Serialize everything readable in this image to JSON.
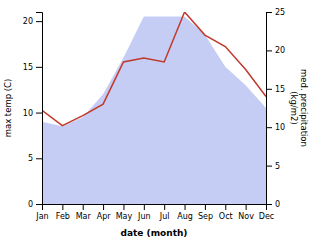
{
  "chart_data": {
    "type": "line",
    "categories": [
      "Jan",
      "Feb",
      "Mar",
      "Apr",
      "May",
      "Jun",
      "Jul",
      "Aug",
      "Sep",
      "Oct",
      "Nov",
      "Dec"
    ],
    "series": [
      {
        "type": "area",
        "color": "#c5cdf5",
        "values": [
          9.0,
          8.5,
          9.5,
          12.0,
          16.0,
          20.5,
          20.5,
          20.5,
          18.5,
          15.0,
          13.0,
          10.5
        ]
      },
      {
        "type": "line",
        "color": "#c0392b",
        "axis": "y2",
        "values": [
          12.2,
          10.2,
          11.5,
          13.0,
          18.5,
          19.0,
          18.5,
          25.0,
          22.0,
          20.5,
          17.5,
          14.0
        ]
      }
    ],
    "xlabel": "date (month)",
    "ylabel": "max temp (C)",
    "y2label": "med. precipitation\n(kg/m2)",
    "ylim": [
      0,
      21
    ],
    "yticks": [
      0,
      5,
      10,
      15,
      20
    ],
    "y2lim": [
      0,
      25
    ],
    "y2ticks": [
      0,
      5,
      10,
      15,
      20,
      25
    ]
  }
}
